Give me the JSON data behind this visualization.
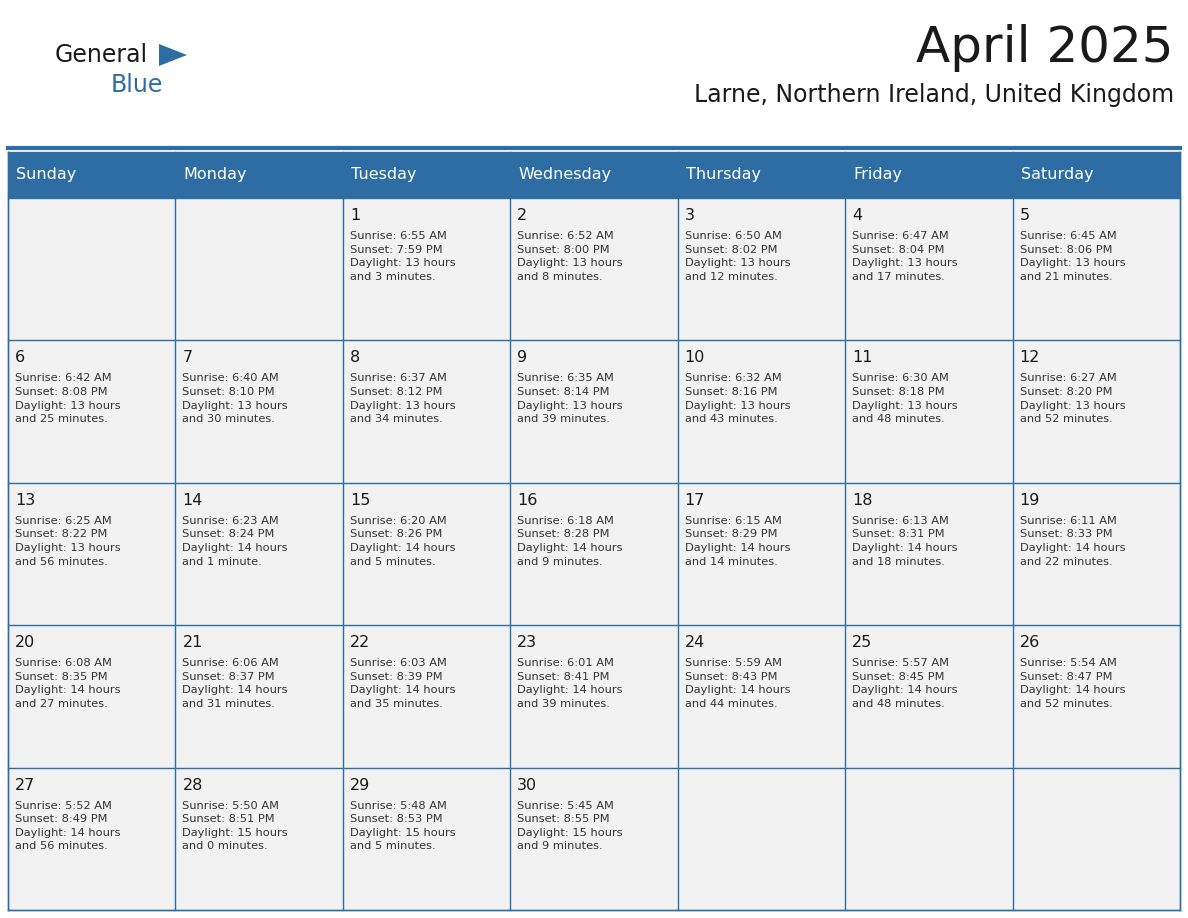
{
  "title": "April 2025",
  "subtitle": "Larne, Northern Ireland, United Kingdom",
  "header_bg": "#2E6DA4",
  "header_text": "#FFFFFF",
  "cell_bg": "#F2F2F2",
  "border_color": "#2E6DA4",
  "day_names": [
    "Sunday",
    "Monday",
    "Tuesday",
    "Wednesday",
    "Thursday",
    "Friday",
    "Saturday"
  ],
  "title_color": "#1a1a1a",
  "subtitle_color": "#1a1a1a",
  "day_number_color": "#1a1a1a",
  "cell_text_color": "#333333",
  "logo_general_color": "#1a1a1a",
  "logo_blue_color": "#2E6DA4",
  "logo_triangle_color": "#2E6DA4",
  "weeks": [
    [
      {
        "day": "",
        "info": ""
      },
      {
        "day": "",
        "info": ""
      },
      {
        "day": "1",
        "info": "Sunrise: 6:55 AM\nSunset: 7:59 PM\nDaylight: 13 hours\nand 3 minutes."
      },
      {
        "day": "2",
        "info": "Sunrise: 6:52 AM\nSunset: 8:00 PM\nDaylight: 13 hours\nand 8 minutes."
      },
      {
        "day": "3",
        "info": "Sunrise: 6:50 AM\nSunset: 8:02 PM\nDaylight: 13 hours\nand 12 minutes."
      },
      {
        "day": "4",
        "info": "Sunrise: 6:47 AM\nSunset: 8:04 PM\nDaylight: 13 hours\nand 17 minutes."
      },
      {
        "day": "5",
        "info": "Sunrise: 6:45 AM\nSunset: 8:06 PM\nDaylight: 13 hours\nand 21 minutes."
      }
    ],
    [
      {
        "day": "6",
        "info": "Sunrise: 6:42 AM\nSunset: 8:08 PM\nDaylight: 13 hours\nand 25 minutes."
      },
      {
        "day": "7",
        "info": "Sunrise: 6:40 AM\nSunset: 8:10 PM\nDaylight: 13 hours\nand 30 minutes."
      },
      {
        "day": "8",
        "info": "Sunrise: 6:37 AM\nSunset: 8:12 PM\nDaylight: 13 hours\nand 34 minutes."
      },
      {
        "day": "9",
        "info": "Sunrise: 6:35 AM\nSunset: 8:14 PM\nDaylight: 13 hours\nand 39 minutes."
      },
      {
        "day": "10",
        "info": "Sunrise: 6:32 AM\nSunset: 8:16 PM\nDaylight: 13 hours\nand 43 minutes."
      },
      {
        "day": "11",
        "info": "Sunrise: 6:30 AM\nSunset: 8:18 PM\nDaylight: 13 hours\nand 48 minutes."
      },
      {
        "day": "12",
        "info": "Sunrise: 6:27 AM\nSunset: 8:20 PM\nDaylight: 13 hours\nand 52 minutes."
      }
    ],
    [
      {
        "day": "13",
        "info": "Sunrise: 6:25 AM\nSunset: 8:22 PM\nDaylight: 13 hours\nand 56 minutes."
      },
      {
        "day": "14",
        "info": "Sunrise: 6:23 AM\nSunset: 8:24 PM\nDaylight: 14 hours\nand 1 minute."
      },
      {
        "day": "15",
        "info": "Sunrise: 6:20 AM\nSunset: 8:26 PM\nDaylight: 14 hours\nand 5 minutes."
      },
      {
        "day": "16",
        "info": "Sunrise: 6:18 AM\nSunset: 8:28 PM\nDaylight: 14 hours\nand 9 minutes."
      },
      {
        "day": "17",
        "info": "Sunrise: 6:15 AM\nSunset: 8:29 PM\nDaylight: 14 hours\nand 14 minutes."
      },
      {
        "day": "18",
        "info": "Sunrise: 6:13 AM\nSunset: 8:31 PM\nDaylight: 14 hours\nand 18 minutes."
      },
      {
        "day": "19",
        "info": "Sunrise: 6:11 AM\nSunset: 8:33 PM\nDaylight: 14 hours\nand 22 minutes."
      }
    ],
    [
      {
        "day": "20",
        "info": "Sunrise: 6:08 AM\nSunset: 8:35 PM\nDaylight: 14 hours\nand 27 minutes."
      },
      {
        "day": "21",
        "info": "Sunrise: 6:06 AM\nSunset: 8:37 PM\nDaylight: 14 hours\nand 31 minutes."
      },
      {
        "day": "22",
        "info": "Sunrise: 6:03 AM\nSunset: 8:39 PM\nDaylight: 14 hours\nand 35 minutes."
      },
      {
        "day": "23",
        "info": "Sunrise: 6:01 AM\nSunset: 8:41 PM\nDaylight: 14 hours\nand 39 minutes."
      },
      {
        "day": "24",
        "info": "Sunrise: 5:59 AM\nSunset: 8:43 PM\nDaylight: 14 hours\nand 44 minutes."
      },
      {
        "day": "25",
        "info": "Sunrise: 5:57 AM\nSunset: 8:45 PM\nDaylight: 14 hours\nand 48 minutes."
      },
      {
        "day": "26",
        "info": "Sunrise: 5:54 AM\nSunset: 8:47 PM\nDaylight: 14 hours\nand 52 minutes."
      }
    ],
    [
      {
        "day": "27",
        "info": "Sunrise: 5:52 AM\nSunset: 8:49 PM\nDaylight: 14 hours\nand 56 minutes."
      },
      {
        "day": "28",
        "info": "Sunrise: 5:50 AM\nSunset: 8:51 PM\nDaylight: 15 hours\nand 0 minutes."
      },
      {
        "day": "29",
        "info": "Sunrise: 5:48 AM\nSunset: 8:53 PM\nDaylight: 15 hours\nand 5 minutes."
      },
      {
        "day": "30",
        "info": "Sunrise: 5:45 AM\nSunset: 8:55 PM\nDaylight: 15 hours\nand 9 minutes."
      },
      {
        "day": "",
        "info": ""
      },
      {
        "day": "",
        "info": ""
      },
      {
        "day": "",
        "info": ""
      }
    ]
  ]
}
